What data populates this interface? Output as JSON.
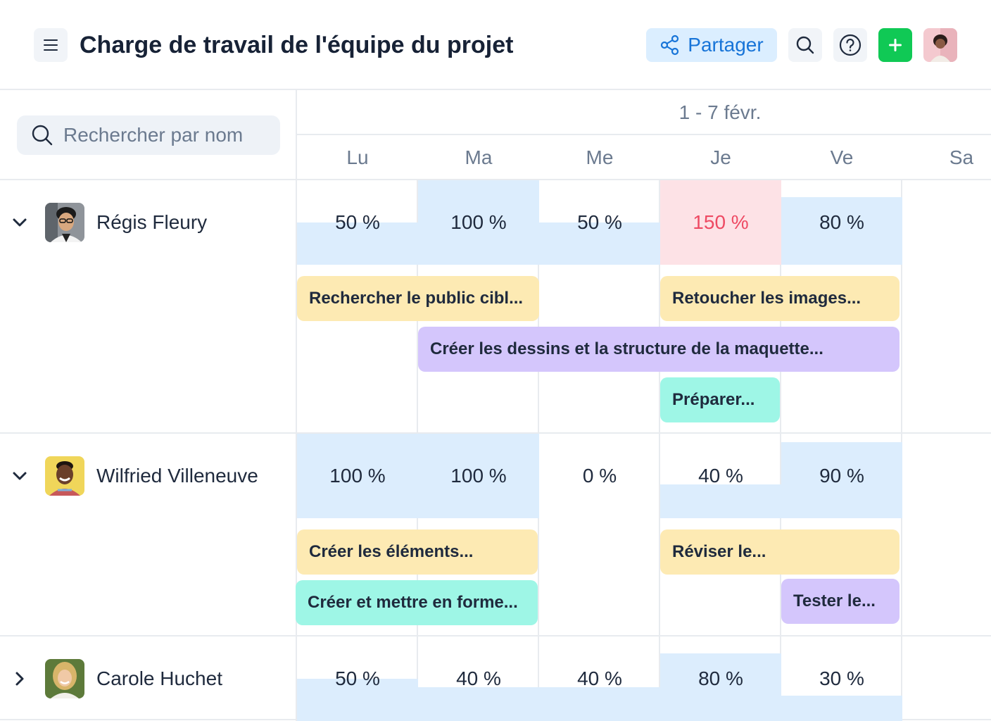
{
  "header": {
    "title": "Charge de travail de l'équipe du projet",
    "share_label": "Partager",
    "colors": {
      "share_bg": "#dbeeff",
      "share_text": "#1774d8",
      "add_bg": "#10c955"
    }
  },
  "search": {
    "placeholder": "Rechercher par nom",
    "value": ""
  },
  "week": {
    "label": "1 - 7 févr.",
    "days": [
      "Lu",
      "Ma",
      "Me",
      "Je",
      "Ve",
      "Sa"
    ]
  },
  "people": [
    {
      "name": "Régis Fleury",
      "expanded": true,
      "loads": [
        {
          "label": "50 %",
          "value": 50
        },
        {
          "label": "100 %",
          "value": 100
        },
        {
          "label": "50 %",
          "value": 50
        },
        {
          "label": "150 %",
          "value": 150
        },
        {
          "label": "80 %",
          "value": 80
        }
      ],
      "tasks": [
        "Rechercher le public cibl...",
        "Retoucher les images...",
        "Créer les dessins et la structure de la maquette...",
        "Préparer..."
      ]
    },
    {
      "name": "Wilfried Villeneuve",
      "expanded": true,
      "loads": [
        {
          "label": "100 %",
          "value": 100
        },
        {
          "label": "100 %",
          "value": 100
        },
        {
          "label": "0 %",
          "value": 0
        },
        {
          "label": "40 %",
          "value": 40
        },
        {
          "label": "90 %",
          "value": 90
        }
      ],
      "tasks": [
        "Créer les éléments...",
        "Réviser le...",
        "Créer et mettre en forme...",
        "Tester le..."
      ]
    },
    {
      "name": "Carole Huchet",
      "expanded": false,
      "loads": [
        {
          "label": "50 %",
          "value": 50
        },
        {
          "label": "40 %",
          "value": 40
        },
        {
          "label": "40 %",
          "value": 40
        },
        {
          "label": "80 %",
          "value": 80
        },
        {
          "label": "30 %",
          "value": 30
        }
      ],
      "tasks": []
    }
  ],
  "colors": {
    "load_fill": "#dcedfd",
    "overload_fill": "#fde2e6",
    "overload_text": "#ee4a63",
    "task_yellow": "#fdeab3",
    "task_purple": "#d4c6fc",
    "task_teal": "#9ef6e6"
  }
}
